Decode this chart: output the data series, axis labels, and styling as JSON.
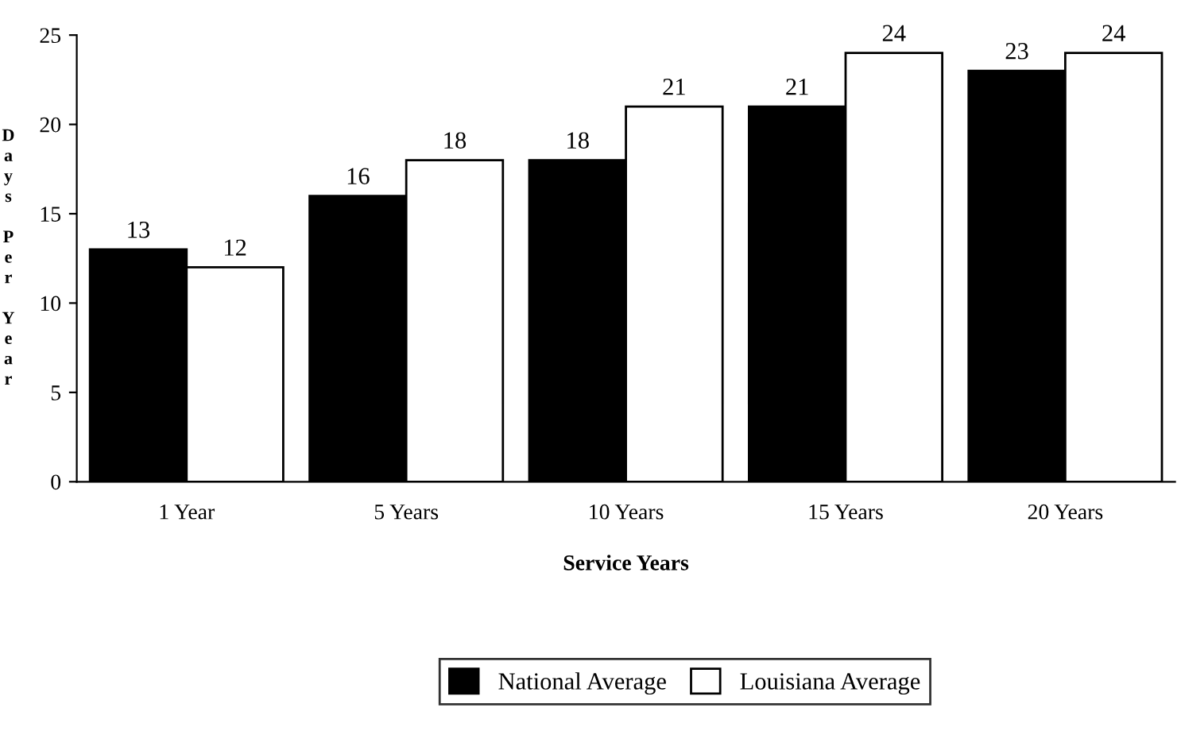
{
  "chart_data": {
    "type": "bar",
    "xlabel": "Service Years",
    "ylabel": "Days Per Year",
    "categories": [
      "1 Year",
      "5 Years",
      "10 Years",
      "15 Years",
      "20 Years"
    ],
    "series": [
      {
        "name": "National Average",
        "color": "#000000",
        "values": [
          13,
          16,
          18,
          21,
          23
        ]
      },
      {
        "name": "Louisiana Average",
        "color": "#ffffff",
        "values": [
          12,
          18,
          21,
          24,
          24
        ]
      }
    ],
    "ylim": [
      0,
      25
    ],
    "yticks": [
      0,
      5,
      10,
      15,
      20,
      25
    ],
    "data_labels": true,
    "grid": false,
    "legend": "bottom"
  }
}
